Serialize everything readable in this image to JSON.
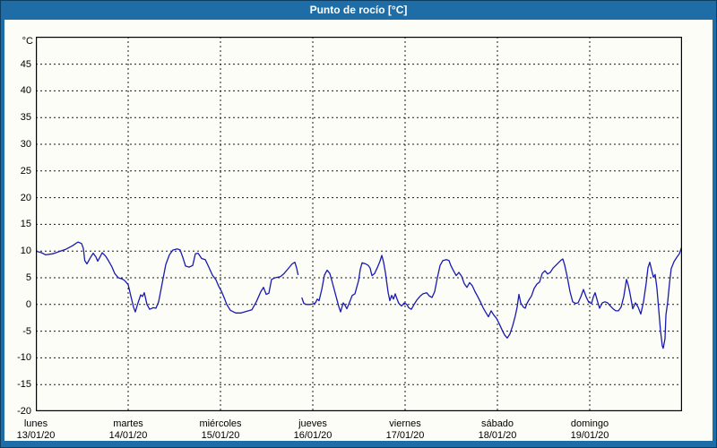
{
  "window": {
    "title": "Punto de rocío [°C]"
  },
  "colors": {
    "titlebar_bg": "#1e6da6",
    "frame_border": "#0d3d60",
    "panel_bg": "#fcfdf6",
    "plot_border": "#000000",
    "grid": "#1a1a1a",
    "text": "#000000",
    "title_text": "#ffffff",
    "line": "#1a1ab2"
  },
  "chart_data": {
    "type": "line",
    "title": "Punto de rocío [°C]",
    "xlabel": "",
    "ylabel": "°C",
    "ylim": [
      -20,
      50
    ],
    "grid": "dashed",
    "legend": "none",
    "y_ticks": [
      45,
      40,
      35,
      30,
      25,
      20,
      15,
      10,
      5,
      0,
      -5,
      -10,
      -15,
      -20
    ],
    "x_days": [
      {
        "name": "lunes",
        "date": "13/01/20"
      },
      {
        "name": "martes",
        "date": "14/01/20"
      },
      {
        "name": "miércoles",
        "date": "15/01/20"
      },
      {
        "name": "jueves",
        "date": "16/01/20"
      },
      {
        "name": "viernes",
        "date": "17/01/20"
      },
      {
        "name": "sábado",
        "date": "18/01/20"
      },
      {
        "name": "domingo",
        "date": "19/01/20"
      }
    ],
    "series": [
      {
        "name": "Punto de rocío",
        "color": "#1a1ab2",
        "points": [
          [
            0,
            10.0
          ],
          [
            0.06,
            9.7
          ],
          [
            0.107,
            9.3
          ],
          [
            0.184,
            9.5
          ],
          [
            0.252,
            9.9
          ],
          [
            0.32,
            10.3
          ],
          [
            0.398,
            11.0
          ],
          [
            0.456,
            11.7
          ],
          [
            0.495,
            11.4
          ],
          [
            0.515,
            10.5
          ],
          [
            0.53,
            8.2
          ],
          [
            0.553,
            7.6
          ],
          [
            0.592,
            8.8
          ],
          [
            0.621,
            9.6
          ],
          [
            0.65,
            8.9
          ],
          [
            0.67,
            8.1
          ],
          [
            0.699,
            9.0
          ],
          [
            0.718,
            9.7
          ],
          [
            0.757,
            9.0
          ],
          [
            0.786,
            8.2
          ],
          [
            0.825,
            7.0
          ],
          [
            0.854,
            5.8
          ],
          [
            0.893,
            5.0
          ],
          [
            0.932,
            4.8
          ],
          [
            0.961,
            4.5
          ],
          [
            1.0,
            3.7
          ],
          [
            1.03,
            1.5
          ],
          [
            1.058,
            -0.5
          ],
          [
            1.078,
            -1.4
          ],
          [
            1.107,
            0.3
          ],
          [
            1.136,
            1.8
          ],
          [
            1.155,
            1.5
          ],
          [
            1.175,
            2.2
          ],
          [
            1.204,
            0.0
          ],
          [
            1.233,
            -0.9
          ],
          [
            1.272,
            -0.6
          ],
          [
            1.301,
            -0.7
          ],
          [
            1.33,
            0.5
          ],
          [
            1.369,
            4.0
          ],
          [
            1.408,
            7.5
          ],
          [
            1.447,
            9.3
          ],
          [
            1.485,
            10.2
          ],
          [
            1.534,
            10.4
          ],
          [
            1.563,
            10.2
          ],
          [
            1.592,
            8.8
          ],
          [
            1.621,
            7.2
          ],
          [
            1.66,
            7.0
          ],
          [
            1.699,
            7.3
          ],
          [
            1.728,
            9.5
          ],
          [
            1.757,
            9.6
          ],
          [
            1.796,
            8.6
          ],
          [
            1.835,
            8.4
          ],
          [
            1.874,
            7.0
          ],
          [
            1.913,
            5.5
          ],
          [
            1.951,
            4.6
          ],
          [
            1.981,
            3.4
          ],
          [
            2.01,
            2.5
          ],
          [
            2.039,
            1.3
          ],
          [
            2.068,
            0.0
          ],
          [
            2.107,
            -1.1
          ],
          [
            2.165,
            -1.6
          ],
          [
            2.223,
            -1.6
          ],
          [
            2.282,
            -1.3
          ],
          [
            2.34,
            -1.0
          ],
          [
            2.388,
            0.5
          ],
          [
            2.437,
            2.4
          ],
          [
            2.466,
            3.2
          ],
          [
            2.495,
            1.9
          ],
          [
            2.524,
            2.1
          ],
          [
            2.553,
            4.7
          ],
          [
            2.592,
            5.0
          ],
          [
            2.65,
            5.2
          ],
          [
            2.689,
            5.8
          ],
          [
            2.728,
            6.6
          ],
          [
            2.777,
            7.6
          ],
          [
            2.806,
            7.9
          ],
          [
            2.825,
            6.8
          ],
          [
            2.84,
            5.6
          ],
          [
            2.86,
            null
          ],
          [
            2.883,
            1.2
          ],
          [
            2.903,
            0.2
          ],
          [
            2.932,
            0.0
          ],
          [
            2.971,
            0.0
          ],
          [
            3.0,
            0.1
          ],
          [
            3.029,
            0.3
          ],
          [
            3.049,
            1.0
          ],
          [
            3.068,
            0.7
          ],
          [
            3.097,
            2.8
          ],
          [
            3.126,
            5.5
          ],
          [
            3.155,
            6.4
          ],
          [
            3.184,
            5.8
          ],
          [
            3.214,
            4.0
          ],
          [
            3.252,
            1.5
          ],
          [
            3.282,
            -0.4
          ],
          [
            3.301,
            -1.4
          ],
          [
            3.33,
            0.3
          ],
          [
            3.35,
            -0.2
          ],
          [
            3.369,
            -0.8
          ],
          [
            3.398,
            0.4
          ],
          [
            3.427,
            1.7
          ],
          [
            3.456,
            2.0
          ],
          [
            3.476,
            3.2
          ],
          [
            3.495,
            4.4
          ],
          [
            3.515,
            6.6
          ],
          [
            3.534,
            7.8
          ],
          [
            3.573,
            7.6
          ],
          [
            3.602,
            7.3
          ],
          [
            3.621,
            6.8
          ],
          [
            3.641,
            5.4
          ],
          [
            3.67,
            5.8
          ],
          [
            3.699,
            6.9
          ],
          [
            3.728,
            8.1
          ],
          [
            3.748,
            9.2
          ],
          [
            3.767,
            7.9
          ],
          [
            3.786,
            6.0
          ],
          [
            3.816,
            2.3
          ],
          [
            3.835,
            0.7
          ],
          [
            3.854,
            1.7
          ],
          [
            3.874,
            1.0
          ],
          [
            3.893,
            2.0
          ],
          [
            3.913,
            1.0
          ],
          [
            3.932,
            0.2
          ],
          [
            3.961,
            -0.3
          ],
          [
            3.99,
            0.3
          ],
          [
            4.019,
            0.0
          ],
          [
            4.039,
            -0.6
          ],
          [
            4.068,
            -0.9
          ],
          [
            4.097,
            0.0
          ],
          [
            4.126,
            0.8
          ],
          [
            4.165,
            1.6
          ],
          [
            4.194,
            2.0
          ],
          [
            4.233,
            2.2
          ],
          [
            4.262,
            1.6
          ],
          [
            4.291,
            1.3
          ],
          [
            4.32,
            2.4
          ],
          [
            4.35,
            5.0
          ],
          [
            4.379,
            7.3
          ],
          [
            4.408,
            8.2
          ],
          [
            4.447,
            8.4
          ],
          [
            4.476,
            8.2
          ],
          [
            4.495,
            7.3
          ],
          [
            4.524,
            6.3
          ],
          [
            4.553,
            5.4
          ],
          [
            4.583,
            6.0
          ],
          [
            4.612,
            5.3
          ],
          [
            4.641,
            3.9
          ],
          [
            4.67,
            3.2
          ],
          [
            4.699,
            4.1
          ],
          [
            4.728,
            3.5
          ],
          [
            4.757,
            2.4
          ],
          [
            4.786,
            1.5
          ],
          [
            4.816,
            0.5
          ],
          [
            4.845,
            -0.6
          ],
          [
            4.874,
            -1.5
          ],
          [
            4.903,
            -2.3
          ],
          [
            4.932,
            -1.2
          ],
          [
            4.961,
            -2.0
          ],
          [
            4.99,
            -2.6
          ],
          [
            5.019,
            -3.6
          ],
          [
            5.049,
            -4.7
          ],
          [
            5.078,
            -5.7
          ],
          [
            5.107,
            -6.3
          ],
          [
            5.136,
            -5.5
          ],
          [
            5.165,
            -4.0
          ],
          [
            5.194,
            -2.1
          ],
          [
            5.214,
            -0.5
          ],
          [
            5.233,
            1.9
          ],
          [
            5.252,
            0.3
          ],
          [
            5.282,
            -0.5
          ],
          [
            5.301,
            -0.7
          ],
          [
            5.32,
            0.2
          ],
          [
            5.34,
            0.8
          ],
          [
            5.369,
            1.6
          ],
          [
            5.398,
            3.0
          ],
          [
            5.427,
            3.8
          ],
          [
            5.456,
            4.2
          ],
          [
            5.485,
            5.8
          ],
          [
            5.515,
            6.3
          ],
          [
            5.544,
            5.7
          ],
          [
            5.573,
            6.0
          ],
          [
            5.602,
            6.8
          ],
          [
            5.631,
            7.3
          ],
          [
            5.66,
            7.8
          ],
          [
            5.689,
            8.3
          ],
          [
            5.709,
            8.5
          ],
          [
            5.728,
            7.4
          ],
          [
            5.757,
            5.1
          ],
          [
            5.786,
            2.4
          ],
          [
            5.816,
            0.5
          ],
          [
            5.845,
            0.2
          ],
          [
            5.874,
            0.3
          ],
          [
            5.903,
            1.4
          ],
          [
            5.932,
            2.8
          ],
          [
            5.961,
            1.4
          ],
          [
            5.99,
            0.4
          ],
          [
            6.019,
            0.2
          ],
          [
            6.039,
            1.4
          ],
          [
            6.058,
            2.2
          ],
          [
            6.087,
            0.4
          ],
          [
            6.107,
            -0.7
          ],
          [
            6.136,
            0.3
          ],
          [
            6.165,
            0.5
          ],
          [
            6.194,
            0.3
          ],
          [
            6.223,
            -0.3
          ],
          [
            6.252,
            -0.8
          ],
          [
            6.282,
            -1.2
          ],
          [
            6.311,
            -1.2
          ],
          [
            6.34,
            -0.5
          ],
          [
            6.369,
            1.5
          ],
          [
            6.398,
            4.7
          ],
          [
            6.417,
            3.6
          ],
          [
            6.437,
            2.0
          ],
          [
            6.466,
            -0.8
          ],
          [
            6.495,
            0.3
          ],
          [
            6.524,
            -0.5
          ],
          [
            6.553,
            -1.8
          ],
          [
            6.583,
            0.5
          ],
          [
            6.612,
            4.0
          ],
          [
            6.631,
            6.9
          ],
          [
            6.65,
            7.9
          ],
          [
            6.67,
            6.5
          ],
          [
            6.689,
            5.1
          ],
          [
            6.709,
            5.6
          ],
          [
            6.728,
            3.0
          ],
          [
            6.748,
            -1.0
          ],
          [
            6.767,
            -5.0
          ],
          [
            6.786,
            -7.8
          ],
          [
            6.796,
            -8.2
          ],
          [
            6.816,
            -6.4
          ],
          [
            6.825,
            -2.0
          ],
          [
            6.845,
            0.5
          ],
          [
            6.864,
            4.0
          ],
          [
            6.883,
            6.7
          ],
          [
            6.913,
            8.0
          ],
          [
            6.942,
            8.8
          ],
          [
            6.971,
            9.5
          ],
          [
            7.0,
            10.9
          ]
        ]
      }
    ]
  }
}
